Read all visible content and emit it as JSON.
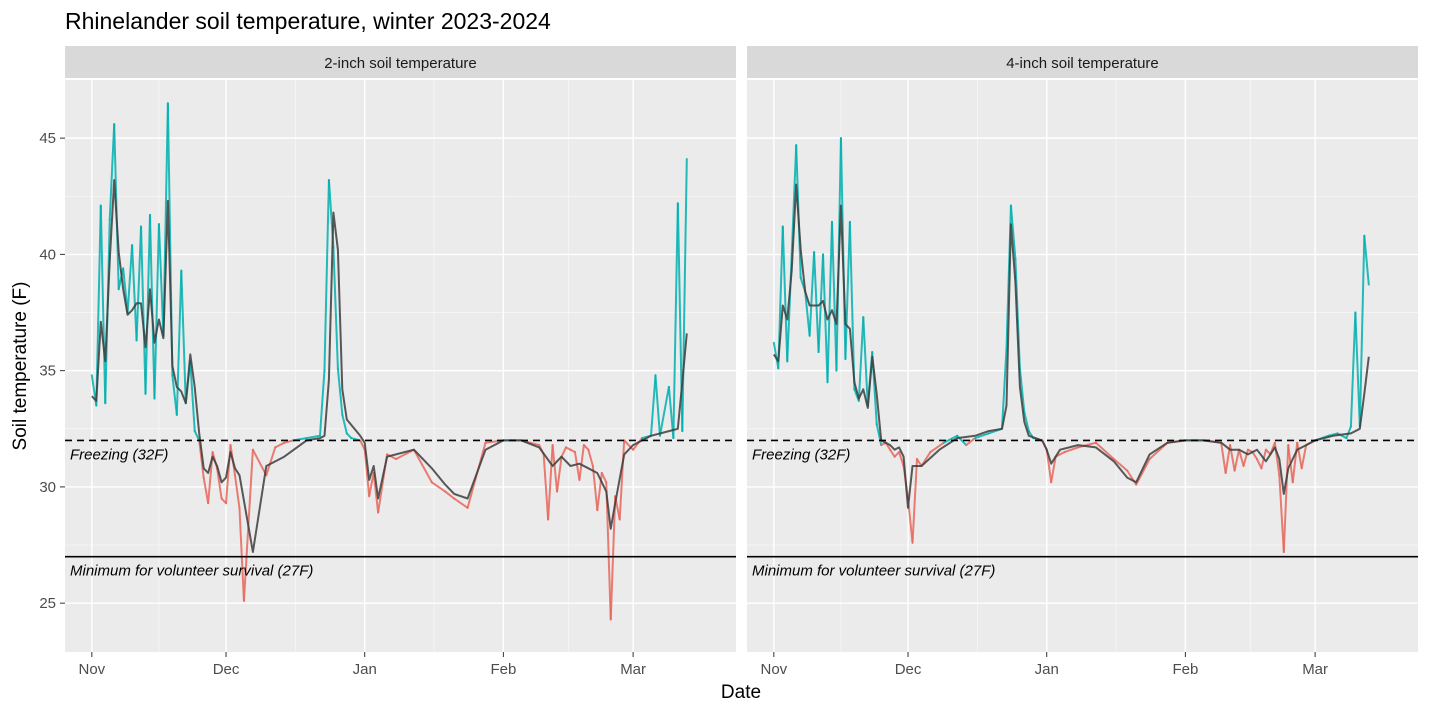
{
  "chart_data": {
    "type": "line",
    "title": "Rhinelander soil temperature, winter 2023-2024",
    "xlabel": "Date",
    "ylabel": "Soil temperature (F)",
    "x_ticks": [
      "Nov",
      "Dec",
      "Jan",
      "Feb",
      "Mar"
    ],
    "x_tick_dates": [
      "2023-11-01",
      "2023-12-01",
      "2024-01-01",
      "2024-02-01",
      "2024-03-01"
    ],
    "xlim": [
      "2023-10-26",
      "2024-03-24"
    ],
    "y_ticks": [
      25,
      30,
      35,
      40,
      45
    ],
    "ylim": [
      22.9,
      47.5
    ],
    "grid": true,
    "legend": "none",
    "colors": {
      "above_freezing": "#00b0b0",
      "below_freezing": "#e8675c",
      "smoothed": "#3d3d3d",
      "panel_bg": "#ebebeb",
      "strip_bg": "#d9d9d9",
      "grid": "#ffffff"
    },
    "reference_lines": [
      {
        "y": 32,
        "style": "dashed",
        "label": "Freezing (32F)"
      },
      {
        "y": 27,
        "style": "solid",
        "label": "Minimum for volunteer survival (27F)"
      }
    ],
    "panels": [
      {
        "strip": "2-inch soil temperature",
        "series": [
          {
            "role": "raw",
            "x": [
              "2023-11-01",
              "2023-11-02",
              "2023-11-03",
              "2023-11-04",
              "2023-11-05",
              "2023-11-06",
              "2023-11-07",
              "2023-11-08",
              "2023-11-09",
              "2023-11-10",
              "2023-11-11",
              "2023-11-12",
              "2023-11-13",
              "2023-11-14",
              "2023-11-15",
              "2023-11-16",
              "2023-11-17",
              "2023-11-18",
              "2023-11-19",
              "2023-11-20",
              "2023-11-21",
              "2023-11-22",
              "2023-11-23",
              "2023-11-24",
              "2023-11-25",
              "2023-11-26",
              "2023-11-27",
              "2023-11-28",
              "2023-11-29",
              "2023-11-30",
              "2023-12-01",
              "2023-12-02",
              "2023-12-03",
              "2023-12-04",
              "2023-12-05",
              "2023-12-07",
              "2023-12-10",
              "2023-12-12",
              "2023-12-14",
              "2023-12-16",
              "2023-12-19",
              "2023-12-22",
              "2023-12-23",
              "2023-12-24",
              "2023-12-25",
              "2023-12-26",
              "2023-12-27",
              "2023-12-28",
              "2023-12-29",
              "2023-12-31",
              "2024-01-01",
              "2024-01-02",
              "2024-01-03",
              "2024-01-04",
              "2024-01-06",
              "2024-01-08",
              "2024-01-12",
              "2024-01-16",
              "2024-01-19",
              "2024-01-21",
              "2024-01-24",
              "2024-01-28",
              "2024-02-01",
              "2024-02-05",
              "2024-02-09",
              "2024-02-10",
              "2024-02-11",
              "2024-02-12",
              "2024-02-13",
              "2024-02-14",
              "2024-02-15",
              "2024-02-16",
              "2024-02-17",
              "2024-02-18",
              "2024-02-19",
              "2024-02-20",
              "2024-02-21",
              "2024-02-22",
              "2024-02-23",
              "2024-02-24",
              "2024-02-25",
              "2024-02-26",
              "2024-02-27",
              "2024-02-28",
              "2024-03-01",
              "2024-03-03",
              "2024-03-05",
              "2024-03-06",
              "2024-03-07",
              "2024-03-09",
              "2024-03-10",
              "2024-03-11",
              "2024-03-12",
              "2024-03-13"
            ],
            "y": [
              34.8,
              33.5,
              42.1,
              33.6,
              41.5,
              45.6,
              38.5,
              39.4,
              37.5,
              40.4,
              36.3,
              41.2,
              34.0,
              41.7,
              33.8,
              41.3,
              36.5,
              46.5,
              34.8,
              33.1,
              39.3,
              33.6,
              35.4,
              32.4,
              32.0,
              30.4,
              29.3,
              31.5,
              30.8,
              29.5,
              29.3,
              31.8,
              30.5,
              29.1,
              25.1,
              31.6,
              30.5,
              31.7,
              31.9,
              32.0,
              32.1,
              32.2,
              35.0,
              43.2,
              40.3,
              35.1,
              33.1,
              32.3,
              32.1,
              32.0,
              31.6,
              29.6,
              30.6,
              28.9,
              31.4,
              31.2,
              31.6,
              30.2,
              29.8,
              29.5,
              29.1,
              31.9,
              32.0,
              32.0,
              31.8,
              31.4,
              28.6,
              31.8,
              29.8,
              31.3,
              31.7,
              31.6,
              31.5,
              30.3,
              31.8,
              31.6,
              30.9,
              29.0,
              30.6,
              30.2,
              24.3,
              29.6,
              28.6,
              32.0,
              31.6,
              32.1,
              32.2,
              34.8,
              32.2,
              34.3,
              32.1,
              42.2,
              32.4,
              44.1
            ]
          },
          {
            "role": "smoothed",
            "x": [
              "2023-11-01",
              "2023-11-02",
              "2023-11-03",
              "2023-11-04",
              "2023-11-05",
              "2023-11-06",
              "2023-11-07",
              "2023-11-08",
              "2023-11-09",
              "2023-11-10",
              "2023-11-11",
              "2023-11-12",
              "2023-11-13",
              "2023-11-14",
              "2023-11-15",
              "2023-11-16",
              "2023-11-17",
              "2023-11-18",
              "2023-11-19",
              "2023-11-20",
              "2023-11-21",
              "2023-11-22",
              "2023-11-23",
              "2023-11-24",
              "2023-11-25",
              "2023-11-26",
              "2023-11-27",
              "2023-11-28",
              "2023-11-29",
              "2023-11-30",
              "2023-12-01",
              "2023-12-02",
              "2023-12-03",
              "2023-12-04",
              "2023-12-07",
              "2023-12-10",
              "2023-12-14",
              "2023-12-19",
              "2023-12-22",
              "2023-12-23",
              "2023-12-24",
              "2023-12-25",
              "2023-12-26",
              "2023-12-27",
              "2023-12-28",
              "2023-12-31",
              "2024-01-01",
              "2024-01-02",
              "2024-01-03",
              "2024-01-04",
              "2024-01-06",
              "2024-01-08",
              "2024-01-12",
              "2024-01-16",
              "2024-01-19",
              "2024-01-21",
              "2024-01-24",
              "2024-01-28",
              "2024-02-01",
              "2024-02-05",
              "2024-02-09",
              "2024-02-12",
              "2024-02-14",
              "2024-02-16",
              "2024-02-18",
              "2024-02-20",
              "2024-02-22",
              "2024-02-24",
              "2024-02-25",
              "2024-02-26",
              "2024-02-28",
              "2024-03-01",
              "2024-03-05",
              "2024-03-09",
              "2024-03-11",
              "2024-03-12",
              "2024-03-13"
            ],
            "y": [
              33.9,
              33.7,
              37.1,
              35.4,
              39.7,
              43.2,
              40.1,
              38.5,
              37.4,
              37.6,
              37.9,
              37.9,
              36.0,
              38.5,
              36.2,
              37.2,
              36.4,
              42.3,
              35.2,
              34.3,
              34.1,
              33.6,
              35.7,
              34.3,
              32.3,
              30.8,
              30.6,
              31.3,
              30.9,
              30.2,
              30.4,
              31.5,
              30.8,
              30.5,
              27.2,
              30.9,
              31.3,
              32.0,
              32.1,
              32.2,
              34.6,
              41.8,
              40.2,
              34.2,
              32.9,
              32.2,
              31.9,
              30.3,
              30.9,
              29.5,
              31.3,
              31.4,
              31.6,
              30.8,
              30.1,
              29.7,
              29.5,
              31.6,
              32.0,
              32.0,
              31.7,
              30.9,
              31.3,
              30.9,
              31.0,
              30.8,
              30.6,
              29.8,
              28.2,
              29.3,
              31.4,
              31.8,
              32.2,
              32.4,
              32.5,
              34.5,
              36.6
            ]
          }
        ]
      },
      {
        "strip": "4-inch soil temperature",
        "series": [
          {
            "role": "raw",
            "x": [
              "2023-11-01",
              "2023-11-02",
              "2023-11-03",
              "2023-11-04",
              "2023-11-05",
              "2023-11-06",
              "2023-11-07",
              "2023-11-08",
              "2023-11-09",
              "2023-11-10",
              "2023-11-11",
              "2023-11-12",
              "2023-11-13",
              "2023-11-14",
              "2023-11-15",
              "2023-11-16",
              "2023-11-17",
              "2023-11-18",
              "2023-11-19",
              "2023-11-20",
              "2023-11-21",
              "2023-11-22",
              "2023-11-23",
              "2023-11-24",
              "2023-11-25",
              "2023-11-26",
              "2023-11-27",
              "2023-11-28",
              "2023-11-29",
              "2023-11-30",
              "2023-12-01",
              "2023-12-02",
              "2023-12-03",
              "2023-12-04",
              "2023-12-06",
              "2023-12-09",
              "2023-12-12",
              "2023-12-14",
              "2023-12-16",
              "2023-12-19",
              "2023-12-22",
              "2023-12-23",
              "2023-12-24",
              "2023-12-25",
              "2023-12-26",
              "2023-12-27",
              "2023-12-28",
              "2023-12-29",
              "2023-12-31",
              "2024-01-01",
              "2024-01-02",
              "2024-01-03",
              "2024-01-05",
              "2024-01-08",
              "2024-01-12",
              "2024-01-16",
              "2024-01-19",
              "2024-01-21",
              "2024-01-24",
              "2024-01-28",
              "2024-02-01",
              "2024-02-05",
              "2024-02-09",
              "2024-02-10",
              "2024-02-11",
              "2024-02-12",
              "2024-02-13",
              "2024-02-14",
              "2024-02-15",
              "2024-02-16",
              "2024-02-17",
              "2024-02-18",
              "2024-02-19",
              "2024-02-20",
              "2024-02-21",
              "2024-02-22",
              "2024-02-23",
              "2024-02-24",
              "2024-02-25",
              "2024-02-26",
              "2024-02-27",
              "2024-02-28",
              "2024-03-01",
              "2024-03-04",
              "2024-03-06",
              "2024-03-08",
              "2024-03-09",
              "2024-03-10",
              "2024-03-11",
              "2024-03-12",
              "2024-03-13"
            ],
            "y": [
              36.2,
              35.1,
              41.2,
              35.4,
              40.0,
              44.7,
              39.0,
              38.4,
              36.5,
              40.1,
              35.8,
              40.0,
              34.5,
              41.4,
              35.0,
              45.0,
              35.5,
              41.4,
              34.2,
              33.7,
              37.3,
              33.5,
              35.8,
              32.7,
              31.8,
              31.9,
              31.6,
              31.3,
              31.5,
              30.9,
              29.5,
              27.6,
              31.2,
              30.9,
              31.5,
              31.9,
              32.2,
              31.8,
              32.1,
              32.3,
              32.5,
              35.9,
              42.1,
              39.8,
              35.1,
              33.2,
              32.4,
              32.1,
              32.0,
              31.6,
              30.2,
              31.3,
              31.5,
              31.7,
              31.9,
              31.2,
              30.7,
              30.1,
              31.2,
              31.9,
              32.0,
              32.0,
              31.9,
              30.6,
              31.8,
              30.7,
              31.6,
              30.9,
              31.6,
              31.5,
              31.2,
              30.8,
              31.6,
              31.4,
              31.9,
              30.5,
              27.2,
              31.8,
              30.2,
              31.9,
              30.8,
              31.8,
              32.0,
              32.2,
              32.3,
              32.1,
              32.6,
              37.5,
              32.6,
              40.8,
              38.7
            ]
          },
          {
            "role": "smoothed",
            "x": [
              "2023-11-01",
              "2023-11-02",
              "2023-11-03",
              "2023-11-04",
              "2023-11-05",
              "2023-11-06",
              "2023-11-07",
              "2023-11-08",
              "2023-11-09",
              "2023-11-10",
              "2023-11-11",
              "2023-11-12",
              "2023-11-13",
              "2023-11-14",
              "2023-11-15",
              "2023-11-16",
              "2023-11-17",
              "2023-11-18",
              "2023-11-19",
              "2023-11-20",
              "2023-11-21",
              "2023-11-22",
              "2023-11-23",
              "2023-11-24",
              "2023-11-25",
              "2023-11-26",
              "2023-11-27",
              "2023-11-28",
              "2023-11-29",
              "2023-11-30",
              "2023-12-01",
              "2023-12-02",
              "2023-12-04",
              "2023-12-08",
              "2023-12-12",
              "2023-12-16",
              "2023-12-19",
              "2023-12-22",
              "2023-12-23",
              "2023-12-24",
              "2023-12-25",
              "2023-12-26",
              "2023-12-27",
              "2023-12-28",
              "2023-12-31",
              "2024-01-01",
              "2024-01-02",
              "2024-01-04",
              "2024-01-08",
              "2024-01-12",
              "2024-01-16",
              "2024-01-19",
              "2024-01-21",
              "2024-01-24",
              "2024-01-28",
              "2024-02-01",
              "2024-02-05",
              "2024-02-09",
              "2024-02-11",
              "2024-02-13",
              "2024-02-15",
              "2024-02-17",
              "2024-02-19",
              "2024-02-21",
              "2024-02-22",
              "2024-02-23",
              "2024-02-24",
              "2024-02-26",
              "2024-02-28",
              "2024-03-01",
              "2024-03-05",
              "2024-03-09",
              "2024-03-11",
              "2024-03-12",
              "2024-03-13"
            ],
            "y": [
              35.7,
              35.4,
              37.8,
              37.2,
              39.3,
              43.0,
              40.2,
              38.4,
              37.8,
              37.8,
              37.8,
              38.0,
              37.2,
              37.6,
              37.0,
              42.1,
              37.0,
              36.8,
              34.5,
              33.8,
              34.2,
              33.4,
              35.6,
              34.0,
              32.0,
              31.9,
              31.8,
              31.6,
              31.7,
              31.3,
              29.1,
              30.9,
              30.9,
              31.6,
              32.1,
              32.2,
              32.4,
              32.5,
              33.5,
              41.3,
              38.8,
              34.3,
              32.8,
              32.2,
              32.0,
              31.6,
              31.0,
              31.6,
              31.8,
              31.7,
              31.1,
              30.4,
              30.2,
              31.4,
              31.9,
              32.0,
              32.0,
              31.9,
              31.6,
              31.6,
              31.4,
              31.6,
              31.1,
              31.7,
              31.2,
              29.7,
              30.8,
              31.6,
              31.8,
              32.0,
              32.2,
              32.3,
              32.5,
              34.0,
              35.6
            ]
          }
        ]
      }
    ]
  }
}
